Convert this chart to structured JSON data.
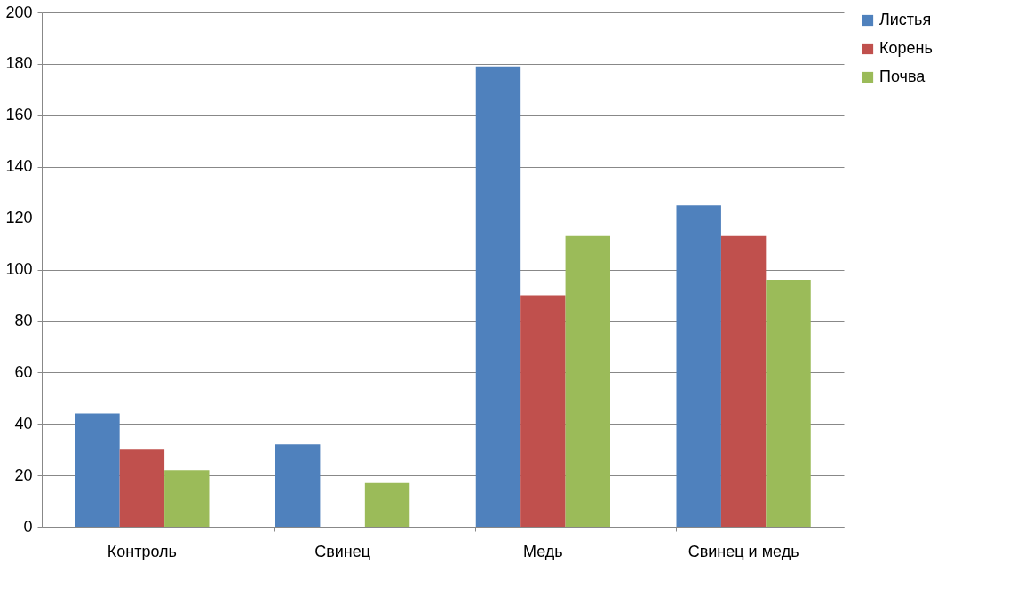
{
  "chart_data": {
    "type": "bar",
    "categories": [
      "Контроль",
      "Свинец",
      "Медь",
      "Свинец и медь"
    ],
    "series": [
      {
        "name": "Листья",
        "color": "#4f81bd",
        "values": [
          44,
          32,
          179,
          125
        ]
      },
      {
        "name": "Корень",
        "color": "#c0504d",
        "values": [
          30,
          null,
          90,
          113
        ]
      },
      {
        "name": "Почва",
        "color": "#9bbb59",
        "values": [
          22,
          17,
          113,
          96
        ]
      }
    ],
    "ylim": [
      0,
      200
    ],
    "yticks": [
      0,
      20,
      40,
      60,
      80,
      100,
      120,
      140,
      160,
      180,
      200
    ],
    "grid": "y",
    "legend": "right"
  }
}
